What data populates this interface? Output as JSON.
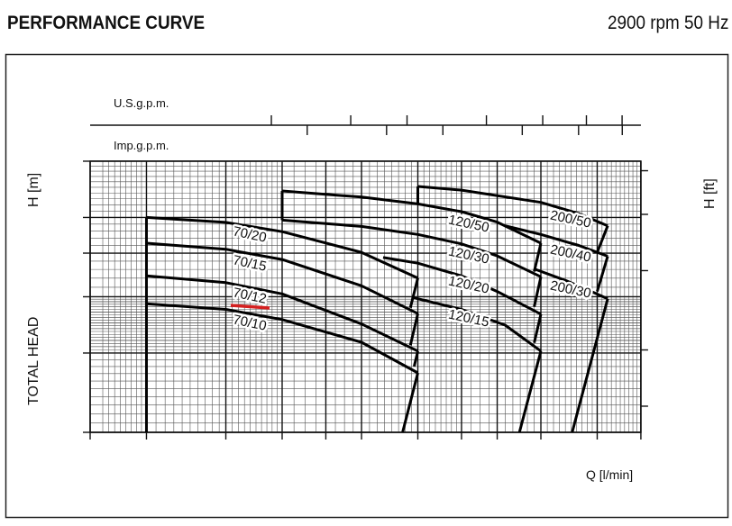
{
  "header": {
    "title": "PERFORMANCE CURVE",
    "speed": "2900 rpm 50 Hz"
  },
  "chart_data": {
    "type": "line",
    "title": "PERFORMANCE CURVE",
    "subtitle": "2900 rpm 50 Hz",
    "xlabel": "Q [l/min]",
    "ylabel": "TOTAL HEAD",
    "ylabel_unit": "H [m]",
    "y2label": "H [ft]",
    "x_scale": "log",
    "y_scale": "log",
    "xlim": [
      15,
      250
    ],
    "ylim": [
      20,
      80
    ],
    "grid": true,
    "x_ticks": [
      15,
      20,
      30,
      40,
      50,
      60,
      80,
      100,
      120,
      150,
      200,
      250
    ],
    "y_ticks": [
      20,
      30,
      40,
      50,
      60,
      80
    ],
    "y2_ticks": [
      75,
      100,
      150,
      200,
      250
    ],
    "top_axis_us": {
      "label": "U.S.g.p.m.",
      "ticks": [
        10,
        15,
        20,
        30,
        40,
        50,
        60
      ]
    },
    "top_axis_imp": {
      "label": "Imp.g.p.m.",
      "ticks": [
        10,
        15,
        20,
        30,
        40,
        50
      ]
    },
    "highlight_color": "#d42020",
    "highlighted_series": "70/12",
    "series": [
      {
        "name": "70/20",
        "points": [
          [
            20,
            60
          ],
          [
            30,
            58.5
          ],
          [
            40,
            55.8
          ],
          [
            60,
            50.2
          ],
          [
            80,
            44
          ]
        ]
      },
      {
        "name": "70/15",
        "points": [
          [
            20,
            52.6
          ],
          [
            30,
            51
          ],
          [
            40,
            48.4
          ],
          [
            60,
            42.3
          ],
          [
            80,
            36.7
          ]
        ]
      },
      {
        "name": "70/12",
        "points": [
          [
            20,
            44.5
          ],
          [
            30,
            43
          ],
          [
            40,
            40.6
          ],
          [
            60,
            34.8
          ],
          [
            80,
            30.3
          ]
        ]
      },
      {
        "name": "70/10",
        "points": [
          [
            20,
            38.6
          ],
          [
            30,
            37.5
          ],
          [
            40,
            35.6
          ],
          [
            60,
            31.7
          ],
          [
            80,
            27.1
          ]
        ]
      },
      {
        "name": "120/50",
        "points": [
          [
            40,
            68.7
          ],
          [
            60,
            66.6
          ],
          [
            80,
            64.3
          ],
          [
            100,
            61.8
          ],
          [
            120,
            58.6
          ],
          [
            150,
            52.6
          ]
        ]
      },
      {
        "name": "120/30",
        "points": [
          [
            40,
            59.2
          ],
          [
            60,
            57.3
          ],
          [
            80,
            55
          ],
          [
            100,
            52.4
          ],
          [
            120,
            49.3
          ],
          [
            150,
            44.3
          ]
        ]
      },
      {
        "name": "120/20",
        "points": [
          [
            67,
            48.9
          ],
          [
            80,
            47.5
          ],
          [
            100,
            44.5
          ],
          [
            120,
            41.1
          ],
          [
            150,
            36.6
          ]
        ]
      },
      {
        "name": "120/15",
        "points": [
          [
            77.6,
            39.9
          ],
          [
            80,
            39.6
          ],
          [
            100,
            37.5
          ],
          [
            125,
            34.6
          ],
          [
            150,
            30.3
          ]
        ]
      },
      {
        "name": "200/50",
        "points": [
          [
            80,
            70.3
          ],
          [
            100,
            69
          ],
          [
            150,
            64.8
          ],
          [
            182,
            61.2
          ],
          [
            211,
            57.5
          ]
        ]
      },
      {
        "name": "200/40",
        "points": [
          [
            125,
            57.5
          ],
          [
            150,
            55
          ],
          [
            182,
            52
          ],
          [
            211,
            49.2
          ]
        ]
      },
      {
        "name": "200/30",
        "points": [
          [
            146,
            46
          ],
          [
            170,
            43.5
          ],
          [
            190,
            41.5
          ],
          [
            211,
            39.6
          ]
        ]
      }
    ],
    "limit_lines": [
      {
        "group": "70",
        "points": [
          [
            80,
            44
          ],
          [
            77,
            37.8
          ]
        ]
      },
      {
        "group": "70",
        "points": [
          [
            80,
            36.7
          ],
          [
            77,
            31.2
          ]
        ]
      },
      {
        "group": "70",
        "points": [
          [
            80,
            30.3
          ],
          [
            78.5,
            28
          ]
        ]
      },
      {
        "group": "70",
        "points": [
          [
            80,
            27.1
          ],
          [
            74,
            20
          ]
        ]
      },
      {
        "group": "120",
        "points": [
          [
            150,
            52.6
          ],
          [
            145,
            45.5
          ]
        ]
      },
      {
        "group": "120",
        "points": [
          [
            150,
            44.3
          ],
          [
            145,
            38
          ]
        ]
      },
      {
        "group": "120",
        "points": [
          [
            150,
            36.6
          ],
          [
            145,
            31.6
          ]
        ]
      },
      {
        "group": "120",
        "points": [
          [
            150,
            30.3
          ],
          [
            134.4,
            20
          ]
        ]
      },
      {
        "group": "200",
        "points": [
          [
            211,
            57.5
          ],
          [
            200,
            50.2
          ]
        ]
      },
      {
        "group": "200",
        "points": [
          [
            211,
            49.2
          ],
          [
            200,
            41.1
          ]
        ]
      },
      {
        "group": "200",
        "points": [
          [
            211,
            39.6
          ],
          [
            176,
            20
          ]
        ]
      }
    ]
  }
}
